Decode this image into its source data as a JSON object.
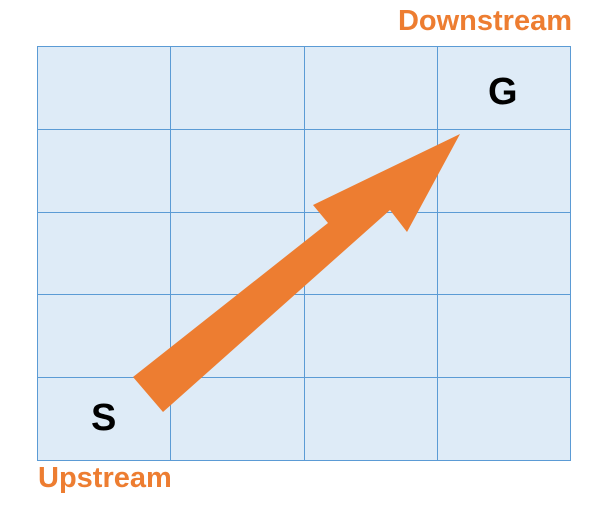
{
  "labels": {
    "downstream": "Downstream",
    "upstream": "Upstream"
  },
  "grid": {
    "rows": 5,
    "cols": 4,
    "cell_color": "#DEEBF7",
    "line_color": "#5B9BD5",
    "goal_label": "G",
    "start_label": "S"
  },
  "arrow": {
    "color": "#ED7D31",
    "direction": "from S to G"
  },
  "colors": {
    "accent": "#ED7D31",
    "text": "#000000"
  }
}
